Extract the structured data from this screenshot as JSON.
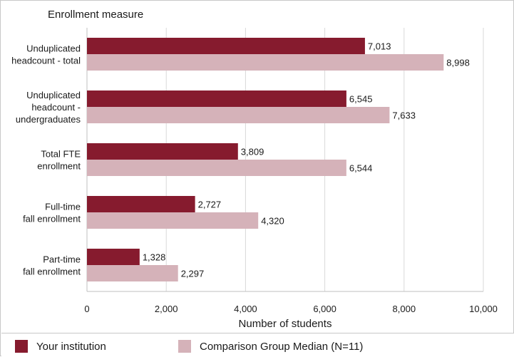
{
  "chart_data": {
    "type": "bar",
    "orientation": "horizontal",
    "title": "Enrollment measure",
    "xlabel": "Number of students",
    "ylabel": "",
    "xlim": [
      0,
      10000
    ],
    "xticks": [
      "0",
      "2,000",
      "4,000",
      "6,000",
      "8,000",
      "10,000"
    ],
    "xtick_values": [
      0,
      2000,
      4000,
      6000,
      8000,
      10000
    ],
    "grid": true,
    "legend_placement": "bottom",
    "categories": [
      [
        "Unduplicated",
        "headcount - total"
      ],
      [
        "Unduplicated",
        "headcount -",
        "undergraduates"
      ],
      [
        "Total FTE",
        "enrollment"
      ],
      [
        "Full-time",
        "fall enrollment"
      ],
      [
        "Part-time",
        "fall enrollment"
      ]
    ],
    "series": [
      {
        "name": "Your institution",
        "color": "#861b2e",
        "values": [
          7013,
          6545,
          3809,
          2727,
          1328
        ],
        "labels": [
          "7,013",
          "6,545",
          "3,809",
          "2,727",
          "1,328"
        ]
      },
      {
        "name": "Comparison Group Median (N=11)",
        "color": "#d5b2b9",
        "values": [
          8998,
          7633,
          6544,
          4320,
          2297
        ],
        "labels": [
          "8,998",
          "7,633",
          "6,544",
          "4,320",
          "2,297"
        ]
      }
    ]
  },
  "legend": {
    "items": [
      {
        "label": "Your institution",
        "color": "#861b2e"
      },
      {
        "label": "Comparison Group Median (N=11)",
        "color": "#d5b2b9"
      }
    ]
  }
}
